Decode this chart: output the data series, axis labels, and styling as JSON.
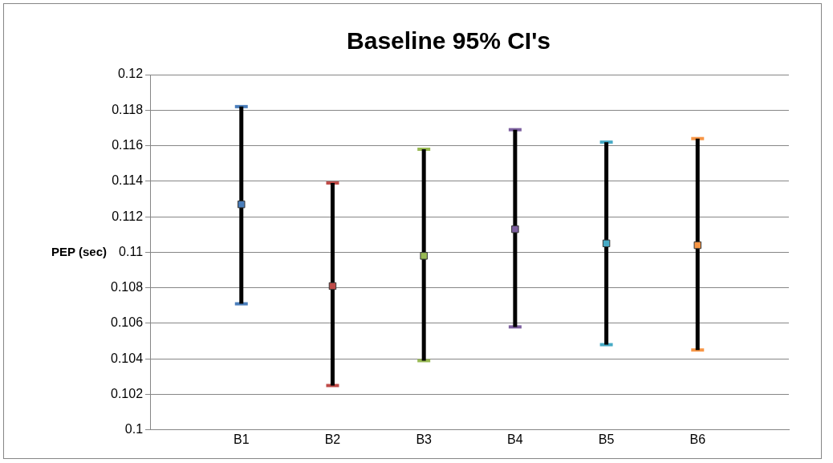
{
  "chart_data": {
    "type": "scatter",
    "title": "Baseline 95% CI's",
    "ylabel": "PEP (sec)",
    "categories": [
      "B1",
      "B2",
      "B3",
      "B4",
      "B5",
      "B6"
    ],
    "values": [
      0.1127,
      0.1081,
      0.1098,
      0.1113,
      0.1105,
      0.1104
    ],
    "errors": [
      [
        0.1071,
        0.1182
      ],
      [
        0.1025,
        0.1139
      ],
      [
        0.1039,
        0.1158
      ],
      [
        0.1058,
        0.1169
      ],
      [
        0.1048,
        0.1162
      ],
      [
        0.1045,
        0.1164
      ]
    ],
    "colors": [
      "#4a7ebb",
      "#be4b48",
      "#98b954",
      "#7d60a0",
      "#46aac5",
      "#f79646"
    ],
    "ylim": [
      0.1,
      0.12
    ],
    "yticks": [
      0.1,
      0.102,
      0.104,
      0.106,
      0.108,
      0.11,
      0.112,
      0.114,
      0.116,
      0.118,
      0.12
    ],
    "grid": "y",
    "legend": false,
    "marker": "square"
  }
}
